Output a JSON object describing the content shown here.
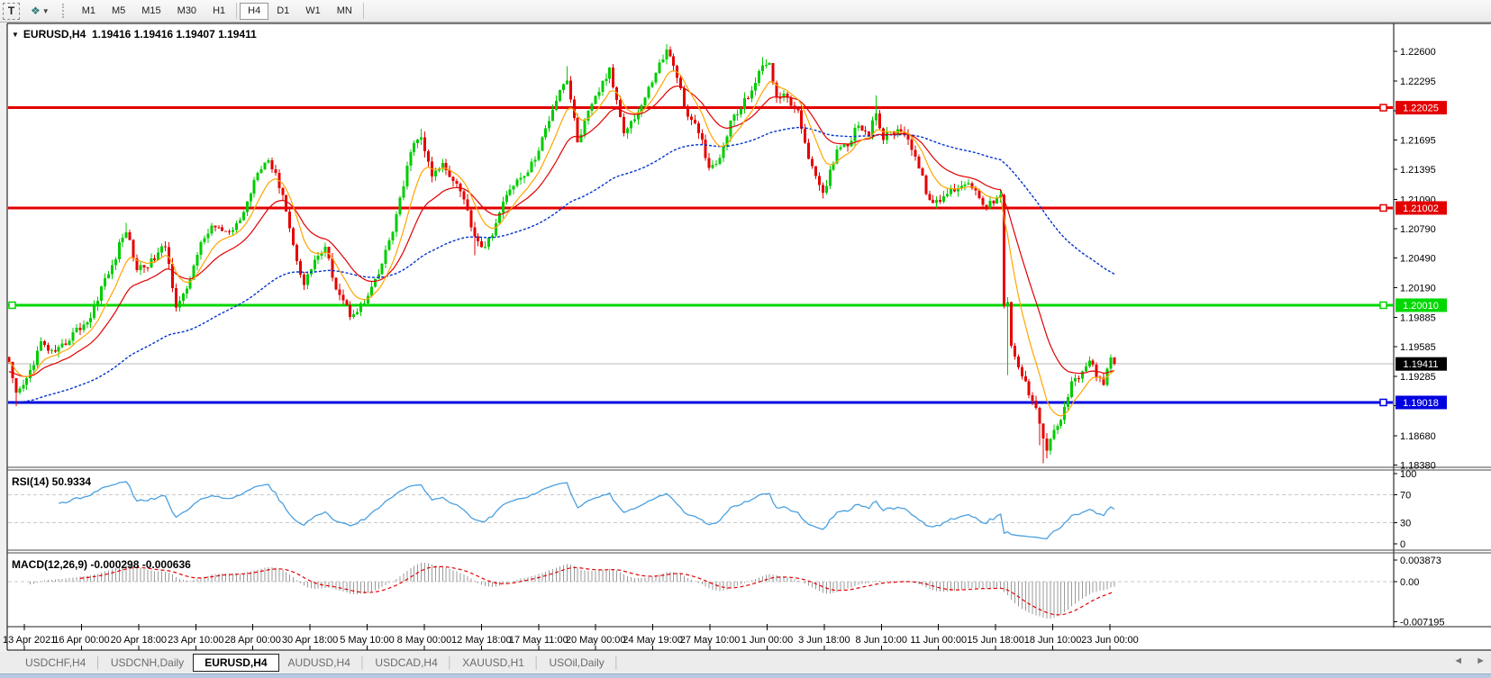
{
  "toolbar": {
    "text_tool": "T",
    "draw_tool_glyph": "❖",
    "draw_tool_caret": "▼",
    "timeframes": [
      "M1",
      "M5",
      "M15",
      "M30",
      "H1",
      "H4",
      "D1",
      "W1",
      "MN"
    ],
    "active_timeframe": "H4"
  },
  "chart": {
    "title_symbol": "EURUSD,H4",
    "title_arrow": "▼",
    "ohlc": "1.19416 1.19416 1.19407 1.19411",
    "y_ticks": [
      "1.22600",
      "1.22295",
      "1.21995",
      "1.21695",
      "1.21395",
      "1.21090",
      "1.20790",
      "1.20490",
      "1.20190",
      "1.19885",
      "1.19585",
      "1.19285",
      "1.18985",
      "1.18680",
      "1.18380"
    ],
    "y_tick_values": [
      1.226,
      1.22295,
      1.21995,
      1.21695,
      1.21395,
      1.2109,
      1.2079,
      1.2049,
      1.2019,
      1.19885,
      1.19585,
      1.19285,
      1.18985,
      1.1868,
      1.1838
    ],
    "x_labels": [
      "13 Apr 2021",
      "16 Apr 00:00",
      "20 Apr 18:00",
      "23 Apr 10:00",
      "28 Apr 00:00",
      "30 Apr 18:00",
      "5 May 10:00",
      "8 May 00:00",
      "12 May 18:00",
      "17 May 11:00",
      "20 May 00:00",
      "24 May 19:00",
      "27 May 10:00",
      "1 Jun 00:00",
      "3 Jun 18:00",
      "8 Jun 10:00",
      "11 Jun 00:00",
      "15 Jun 18:00",
      "18 Jun 10:00",
      "23 Jun 00:00"
    ],
    "hlines": [
      {
        "label": "1.22025",
        "value": 1.22025,
        "color": "#e30000",
        "name": "resistance-1"
      },
      {
        "label": "1.21002",
        "value": 1.21002,
        "color": "#e30000",
        "name": "resistance-2"
      },
      {
        "label": "1.20010",
        "value": 1.2001,
        "color": "#00d800",
        "name": "support-green"
      },
      {
        "label": "1.19018",
        "value": 1.19018,
        "color": "#0000e0",
        "name": "support-blue"
      }
    ],
    "current_price": {
      "label": "1.19411",
      "value": 1.19411,
      "badge_color": "#000000"
    },
    "colors": {
      "up_candle": "#00cc00",
      "down_candle": "#e60000",
      "ma_fast": "#ffa500",
      "ma_mid": "#e00000",
      "ma_slow": "#0033cc",
      "current_line": "#b8b8b8",
      "grid_dash": "#c8c8c8"
    }
  },
  "rsi": {
    "label": "RSI(14) 50.9334",
    "line_color": "#4aa0e0",
    "levels": [
      {
        "label": "100",
        "value": 100
      },
      {
        "label": "70",
        "value": 70
      },
      {
        "label": "30",
        "value": 30
      },
      {
        "label": "0",
        "value": 0
      }
    ],
    "dashed_levels": [
      70,
      30
    ]
  },
  "macd": {
    "label": "MACD(12,26,9) -0.000298 -0.000636",
    "histogram_color": "#9a9a9a",
    "signal_color": "#e30000",
    "axis": [
      {
        "label": "0.003873",
        "value": 0.003873
      },
      {
        "label": "0.00",
        "value": 0
      },
      {
        "label": "-0.007195",
        "value": -0.007195
      }
    ]
  },
  "tabs": {
    "items": [
      "USDCHF,H4",
      "USDCNH,Daily",
      "EURUSD,H4",
      "AUDUSD,H4",
      "USDCAD,H4",
      "XAUUSD,H1",
      "USOil,Daily"
    ],
    "active": "EURUSD,H4",
    "scroll_left": "◄",
    "scroll_right": "►"
  },
  "chart_data": {
    "type": "candlestick",
    "symbol": "EURUSD",
    "timeframe": "H4",
    "visible_range": {
      "price_min": 1.1838,
      "price_max": 1.2266,
      "start": "13 Apr 2021",
      "end": "23 Jun 2021"
    },
    "candle_count": 312,
    "last_close": 1.19411,
    "close_anchors": [
      [
        0,
        1.194
      ],
      [
        2,
        1.1908
      ],
      [
        5,
        1.1925
      ],
      [
        9,
        1.1962
      ],
      [
        13,
        1.195
      ],
      [
        18,
        1.1972
      ],
      [
        23,
        1.1988
      ],
      [
        26,
        1.202
      ],
      [
        29,
        1.204
      ],
      [
        31,
        1.2062
      ],
      [
        33,
        1.2078
      ],
      [
        36,
        1.2038
      ],
      [
        40,
        1.2045
      ],
      [
        44,
        1.2062
      ],
      [
        47,
        1.2002
      ],
      [
        50,
        1.2015
      ],
      [
        53,
        1.2055
      ],
      [
        57,
        1.2082
      ],
      [
        62,
        1.2072
      ],
      [
        66,
        1.2095
      ],
      [
        70,
        1.214
      ],
      [
        73,
        1.215
      ],
      [
        77,
        1.2115
      ],
      [
        80,
        1.2062
      ],
      [
        83,
        1.2022
      ],
      [
        86,
        1.2048
      ],
      [
        89,
        1.2058
      ],
      [
        92,
        1.202
      ],
      [
        96,
        1.1992
      ],
      [
        100,
        1.2003
      ],
      [
        104,
        1.2032
      ],
      [
        108,
        1.2078
      ],
      [
        111,
        1.2122
      ],
      [
        113,
        1.216
      ],
      [
        116,
        1.2172
      ],
      [
        119,
        1.2132
      ],
      [
        122,
        1.2145
      ],
      [
        127,
        1.212
      ],
      [
        131,
        1.2072
      ],
      [
        134,
        1.2058
      ],
      [
        137,
        1.2085
      ],
      [
        141,
        1.2122
      ],
      [
        145,
        1.2132
      ],
      [
        149,
        1.2158
      ],
      [
        152,
        1.2192
      ],
      [
        155,
        1.2222
      ],
      [
        157,
        1.2232
      ],
      [
        160,
        1.2168
      ],
      [
        163,
        1.2196
      ],
      [
        167,
        1.2228
      ],
      [
        169,
        1.224
      ],
      [
        173,
        1.218
      ],
      [
        176,
        1.2192
      ],
      [
        179,
        1.2212
      ],
      [
        182,
        1.224
      ],
      [
        185,
        1.226
      ],
      [
        187,
        1.2248
      ],
      [
        191,
        1.2192
      ],
      [
        194,
        1.218
      ],
      [
        197,
        1.2138
      ],
      [
        200,
        1.215
      ],
      [
        203,
        1.2188
      ],
      [
        206,
        1.2202
      ],
      [
        209,
        1.2222
      ],
      [
        212,
        1.2244
      ],
      [
        214,
        1.225
      ],
      [
        216,
        1.2212
      ],
      [
        219,
        1.2214
      ],
      [
        222,
        1.2196
      ],
      [
        226,
        1.214
      ],
      [
        229,
        1.2112
      ],
      [
        233,
        1.2162
      ],
      [
        236,
        1.2166
      ],
      [
        239,
        1.2186
      ],
      [
        242,
        1.2176
      ],
      [
        244,
        1.2196
      ],
      [
        246,
        1.2172
      ],
      [
        249,
        1.2178
      ],
      [
        252,
        1.218
      ],
      [
        255,
        1.2152
      ],
      [
        258,
        1.2118
      ],
      [
        260,
        1.2102
      ],
      [
        263,
        1.2112
      ],
      [
        266,
        1.212
      ],
      [
        269,
        1.2126
      ],
      [
        272,
        1.212
      ],
      [
        275,
        1.21
      ],
      [
        277,
        1.2108
      ],
      [
        279,
        1.2112
      ],
      [
        280,
        1.1998
      ],
      [
        281,
        1.2002
      ],
      [
        282,
        1.1958
      ],
      [
        284,
        1.1938
      ],
      [
        287,
        1.1912
      ],
      [
        289,
        1.19
      ],
      [
        291,
        1.1865
      ],
      [
        292,
        1.1852
      ],
      [
        293,
        1.1868
      ],
      [
        295,
        1.1875
      ],
      [
        297,
        1.1898
      ],
      [
        299,
        1.192
      ],
      [
        302,
        1.1932
      ],
      [
        304,
        1.1946
      ],
      [
        306,
        1.1927
      ],
      [
        308,
        1.1923
      ],
      [
        310,
        1.1944
      ],
      [
        311,
        1.19411
      ]
    ],
    "spike_highs": [
      [
        33,
        1.2085
      ],
      [
        116,
        1.2181
      ],
      [
        157,
        1.2245
      ],
      [
        185,
        1.2266
      ],
      [
        212,
        1.2254
      ],
      [
        244,
        1.2215
      ]
    ],
    "spike_lows": [
      [
        2,
        1.1898
      ],
      [
        96,
        1.1986
      ],
      [
        131,
        1.2052
      ],
      [
        281,
        1.193
      ],
      [
        290,
        1.1858
      ],
      [
        291,
        1.184
      ],
      [
        292,
        1.1845
      ]
    ],
    "indicators": {
      "ma_fast_period": 9,
      "ma_mid_period": 21,
      "ma_slow_period": 90,
      "rsi_period": 14,
      "rsi_last": 50.9334,
      "macd_params": [
        12,
        26,
        9
      ],
      "macd_last": -0.000298,
      "macd_signal_last": -0.000636
    }
  }
}
